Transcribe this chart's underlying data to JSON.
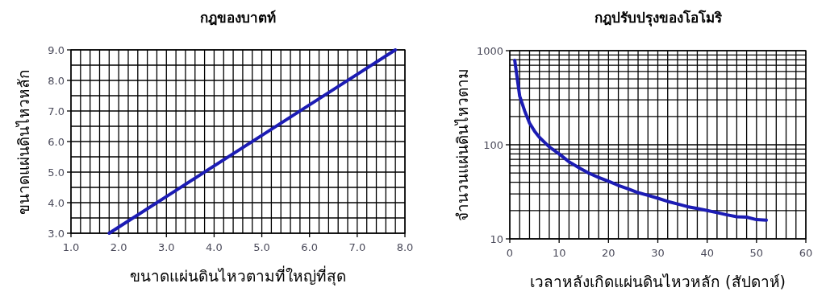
{
  "chart_data": [
    {
      "type": "line",
      "title": "กฎของบาตท์",
      "xlabel": "ขนาดแผ่นดินไหวตามที่ใหญ่ที่สุด",
      "ylabel": "ขนาดแผ่นดินไหวหลัก",
      "grid": true,
      "xlim": [
        1,
        8
      ],
      "ylim": [
        3,
        9
      ],
      "xticks": [
        {
          "value": 1,
          "label": "1.0"
        },
        {
          "value": 1.2,
          "label": null
        },
        {
          "value": 1.4,
          "label": null
        },
        {
          "value": 1.6,
          "label": null
        },
        {
          "value": 1.8,
          "label": null
        },
        {
          "value": 2,
          "label": "2.0"
        },
        {
          "value": 2.2,
          "label": null
        },
        {
          "value": 2.4,
          "label": null
        },
        {
          "value": 2.6,
          "label": null
        },
        {
          "value": 2.8,
          "label": null
        },
        {
          "value": 3,
          "label": "3.0"
        },
        {
          "value": 3.2,
          "label": null
        },
        {
          "value": 3.4,
          "label": null
        },
        {
          "value": 3.6,
          "label": null
        },
        {
          "value": 3.8,
          "label": null
        },
        {
          "value": 4,
          "label": "4.0"
        },
        {
          "value": 4.2,
          "label": null
        },
        {
          "value": 4.4,
          "label": null
        },
        {
          "value": 4.6,
          "label": null
        },
        {
          "value": 4.8,
          "label": null
        },
        {
          "value": 5,
          "label": "5.0"
        },
        {
          "value": 5.2,
          "label": null
        },
        {
          "value": 5.4,
          "label": null
        },
        {
          "value": 5.6,
          "label": null
        },
        {
          "value": 5.8,
          "label": null
        },
        {
          "value": 6,
          "label": "6.0"
        },
        {
          "value": 6.2,
          "label": null
        },
        {
          "value": 6.4,
          "label": null
        },
        {
          "value": 6.6,
          "label": null
        },
        {
          "value": 6.8,
          "label": null
        },
        {
          "value": 7,
          "label": "7.0"
        },
        {
          "value": 7.2,
          "label": null
        },
        {
          "value": 7.4,
          "label": null
        },
        {
          "value": 7.6,
          "label": null
        },
        {
          "value": 7.8,
          "label": null
        },
        {
          "value": 8,
          "label": "8.0"
        }
      ],
      "yticks": [
        {
          "value": 3,
          "label": "3.0"
        },
        {
          "value": 3.5,
          "label": null
        },
        {
          "value": 4,
          "label": "4.0"
        },
        {
          "value": 4.5,
          "label": null
        },
        {
          "value": 5,
          "label": "5.0"
        },
        {
          "value": 5.5,
          "label": null
        },
        {
          "value": 6,
          "label": "6.0"
        },
        {
          "value": 6.5,
          "label": null
        },
        {
          "value": 7,
          "label": "7.0"
        },
        {
          "value": 7.5,
          "label": null
        },
        {
          "value": 8,
          "label": "8.0"
        },
        {
          "value": 8.5,
          "label": null
        },
        {
          "value": 9,
          "label": "9.0"
        }
      ],
      "series": [
        {
          "color": "#1c1cb4",
          "x": [
            1.8,
            3.0,
            5.0,
            7.0,
            7.8
          ],
          "values": [
            3.0,
            4.2,
            6.2,
            8.2,
            9.0
          ]
        }
      ]
    },
    {
      "type": "line",
      "title": "กฎปรับปรุงของโอโมริ",
      "xlabel": "เวลาหลังเกิดแผ่นดินไหวหลัก (สัปดาห์)",
      "ylabel": "จำนวนแผ่นดินไหวตาม",
      "grid": true,
      "log": "y",
      "xlim": [
        0,
        60
      ],
      "ylim": [
        10,
        1000
      ],
      "xticks": [
        0,
        {
          "value": 2,
          "label": null
        },
        {
          "value": 4,
          "label": null
        },
        {
          "value": 6,
          "label": null
        },
        {
          "value": 8,
          "label": null
        },
        10,
        {
          "value": 12,
          "label": null
        },
        {
          "value": 14,
          "label": null
        },
        {
          "value": 16,
          "label": null
        },
        {
          "value": 18,
          "label": null
        },
        20,
        {
          "value": 22,
          "label": null
        },
        {
          "value": 24,
          "label": null
        },
        {
          "value": 26,
          "label": null
        },
        {
          "value": 28,
          "label": null
        },
        30,
        {
          "value": 32,
          "label": null
        },
        {
          "value": 34,
          "label": null
        },
        {
          "value": 36,
          "label": null
        },
        {
          "value": 38,
          "label": null
        },
        40,
        {
          "value": 42,
          "label": null
        },
        {
          "value": 44,
          "label": null
        },
        {
          "value": 46,
          "label": null
        },
        {
          "value": 48,
          "label": null
        },
        50,
        {
          "value": 52,
          "label": null
        },
        {
          "value": 54,
          "label": null
        },
        {
          "value": 56,
          "label": null
        },
        {
          "value": 58,
          "label": null
        },
        60
      ],
      "yticks": [
        10,
        {
          "value": 20,
          "label": null
        },
        {
          "value": 30,
          "label": null
        },
        {
          "value": 40,
          "label": null
        },
        {
          "value": 50,
          "label": null
        },
        {
          "value": 60,
          "label": null
        },
        {
          "value": 70,
          "label": null
        },
        {
          "value": 80,
          "label": null
        },
        {
          "value": 90,
          "label": null
        },
        100,
        {
          "value": 200,
          "label": null
        },
        {
          "value": 300,
          "label": null
        },
        {
          "value": 400,
          "label": null
        },
        {
          "value": 500,
          "label": null
        },
        {
          "value": 600,
          "label": null
        },
        {
          "value": 700,
          "label": null
        },
        {
          "value": 800,
          "label": null
        },
        {
          "value": 900,
          "label": null
        },
        1000
      ],
      "series": [
        {
          "color": "#1c1cb4",
          "x": [
            1,
            2,
            3,
            4,
            5,
            6,
            8,
            10,
            12,
            14,
            16,
            18,
            20,
            22,
            24,
            26,
            28,
            30,
            32,
            34,
            36,
            38,
            40,
            42,
            44,
            46,
            48,
            50,
            52
          ],
          "values": [
            790,
            330,
            230,
            170,
            140,
            120,
            95,
            80,
            66,
            57,
            50,
            45,
            41,
            37,
            34,
            31,
            29,
            27,
            25,
            23.5,
            22,
            21,
            20,
            19,
            18,
            17.2,
            17,
            16,
            15.8
          ]
        }
      ]
    }
  ]
}
